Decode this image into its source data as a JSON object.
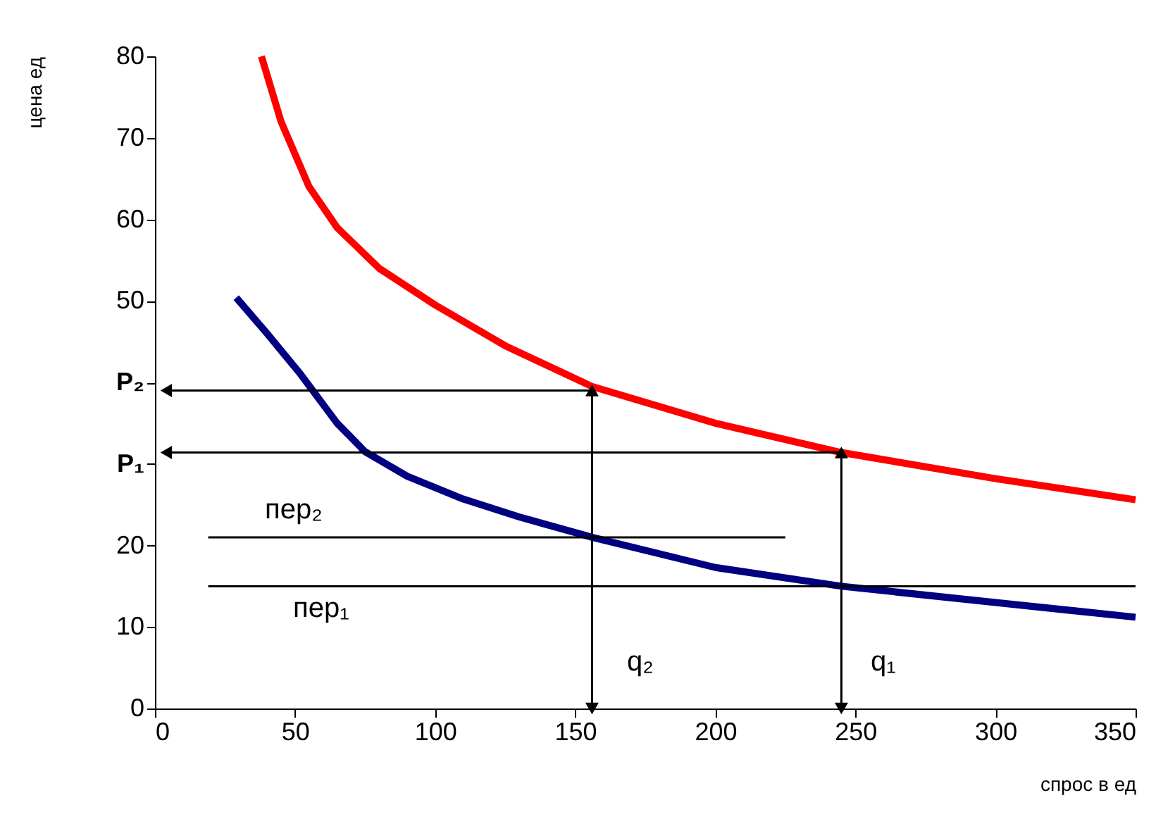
{
  "chart_data": {
    "type": "line",
    "xlabel": "спрос в ед",
    "ylabel": "цена ед",
    "xlim": [
      0,
      350
    ],
    "xticks": [
      0,
      50,
      100,
      150,
      200,
      250,
      300,
      350
    ],
    "ylim": [
      0,
      80
    ],
    "yticks": [
      0,
      10,
      20,
      {
        "value": 30,
        "label": "P₁"
      },
      {
        "value": 40,
        "label": "P₂"
      },
      50,
      60,
      70,
      80
    ],
    "series": [
      {
        "color": "#ff0000",
        "x": [
          38,
          45,
          55,
          65,
          80,
          100,
          125,
          156,
          200,
          245,
          300,
          350
        ],
        "values": [
          80,
          72,
          64,
          59,
          54,
          49.5,
          44.5,
          39.5,
          35,
          31.4,
          28.2,
          25.6
        ]
      },
      {
        "color": "#000080",
        "x": [
          29,
          40,
          52,
          65,
          75,
          90,
          110,
          130,
          156,
          200,
          245,
          300,
          350
        ],
        "values": [
          50.4,
          46,
          41,
          35,
          31.5,
          28.5,
          25.7,
          23.5,
          21,
          17.3,
          15,
          13,
          11.2
        ]
      },
      {
        "color": "#000000",
        "marker": "none",
        "x": [
          19,
          225
        ],
        "values": [
          21,
          21
        ]
      },
      {
        "color": "#000000",
        "marker": "none",
        "x": [
          19,
          350
        ],
        "values": [
          15,
          15
        ]
      },
      {
        "color": "#000000",
        "marker": "triangle",
        "x": [
          4,
          156,
          156
        ],
        "values": [
          39,
          39,
          0
        ]
      },
      {
        "color": "#000000",
        "marker": "triangle",
        "x": [
          4,
          245,
          245
        ],
        "values": [
          31.4,
          31.4,
          0
        ]
      }
    ],
    "annotations": [
      "пер₂",
      "пер₁",
      "q₂",
      "q₁"
    ]
  }
}
